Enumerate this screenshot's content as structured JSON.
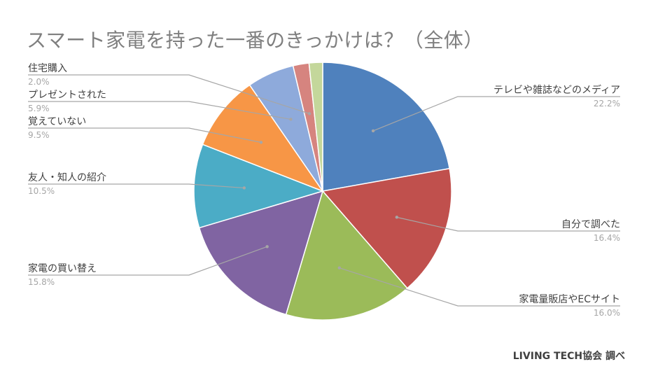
{
  "title": "スマート家電を持った一番のきっかけは？（全体）",
  "source": "LIVING TECH協会 調べ",
  "colors": {
    "accent": "#4f81bd",
    "label_text": "#404040",
    "percent_text": "#a6a6a6"
  },
  "chart_data": {
    "type": "pie",
    "title": "スマート家電を持った一番のきっかけは？（全体）",
    "start_angle_deg": 0,
    "direction": "clockwise",
    "legend": "none",
    "slices": [
      {
        "label": "テレビや雑誌などのメディア",
        "value": 22.2,
        "pct_label": "22.2%",
        "color": "#4f81bd"
      },
      {
        "label": "自分で調べた",
        "value": 16.4,
        "pct_label": "16.4%",
        "color": "#c0504d"
      },
      {
        "label": "家電量販店やECサイト",
        "value": 16.0,
        "pct_label": "16.0%",
        "color": "#9bbb59"
      },
      {
        "label": "家電の買い替え",
        "value": 15.8,
        "pct_label": "15.8%",
        "color": "#8064a2"
      },
      {
        "label": "友人・知人の紹介",
        "value": 10.5,
        "pct_label": "10.5%",
        "color": "#4bacc6"
      },
      {
        "label": "覚えていない",
        "value": 9.5,
        "pct_label": "9.5%",
        "color": "#f79646"
      },
      {
        "label": "プレゼントされた",
        "value": 5.9,
        "pct_label": "5.9%",
        "color": "#8eaadb"
      },
      {
        "label": "住宅購入",
        "value": 2.0,
        "pct_label": "2.0%",
        "color": "#d6847f"
      },
      {
        "label": "",
        "value": 1.7,
        "pct_label": "",
        "color": "#c4d79b"
      }
    ]
  }
}
